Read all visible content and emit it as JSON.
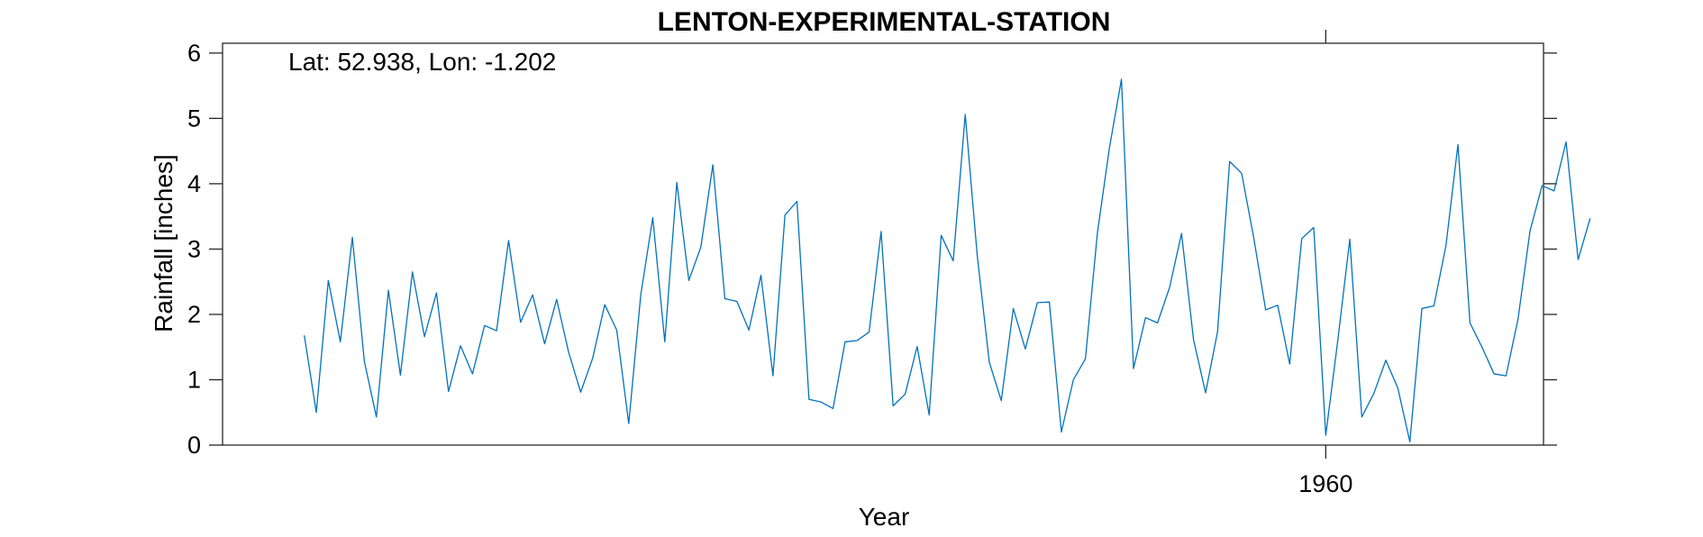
{
  "chart_data": {
    "type": "line",
    "title": "LENTON-EXPERIMENTAL-STATION",
    "xlabel": "Year",
    "ylabel": "Rainfall [inches]",
    "annotation": "Lat: 52.938, Lon: -1.202",
    "xlim": [
      1952.35,
      1961.51
    ],
    "ylim": [
      0,
      6.15
    ],
    "x_ticks": [
      1960
    ],
    "x_tick_labels": [
      "1960"
    ],
    "y_ticks": [
      0,
      1,
      2,
      3,
      4,
      5,
      6
    ],
    "y_tick_labels": [
      "0",
      "1",
      "2",
      "3",
      "4",
      "5",
      "6"
    ],
    "grid": false,
    "legend": "none",
    "x_start": "1952-12",
    "x_step": "1 month",
    "series": [
      {
        "color": "#0072BD",
        "values": [
          1.68,
          0.5,
          2.52,
          1.58,
          3.18,
          1.28,
          0.43,
          2.37,
          1.07,
          2.65,
          1.66,
          2.33,
          0.82,
          1.52,
          1.09,
          1.83,
          1.75,
          3.13,
          1.88,
          2.3,
          1.55,
          2.23,
          1.42,
          0.81,
          1.33,
          2.15,
          1.76,
          0.33,
          2.3,
          3.48,
          1.58,
          4.02,
          2.52,
          3.03,
          4.29,
          2.24,
          2.2,
          1.76,
          2.6,
          1.06,
          3.52,
          3.73,
          0.7,
          0.66,
          0.56,
          1.58,
          1.6,
          1.73,
          3.27,
          0.6,
          0.78,
          1.51,
          0.46,
          3.21,
          2.82,
          5.06,
          2.9,
          1.27,
          0.68,
          2.09,
          1.47,
          2.18,
          2.19,
          0.2,
          1.0,
          1.32,
          3.25,
          4.55,
          5.6,
          1.17,
          1.95,
          1.87,
          2.41,
          3.24,
          1.61,
          0.8,
          1.74,
          4.34,
          4.16,
          3.18,
          2.07,
          2.14,
          1.24,
          3.16,
          3.33,
          0.15,
          1.6,
          3.15,
          0.43,
          0.79,
          1.3,
          0.87,
          0.05,
          2.09,
          2.13,
          3.05,
          4.6,
          1.87,
          1.5,
          1.09,
          1.06,
          1.93,
          3.28,
          3.97,
          3.89,
          4.64,
          2.84,
          3.47
        ]
      }
    ]
  }
}
